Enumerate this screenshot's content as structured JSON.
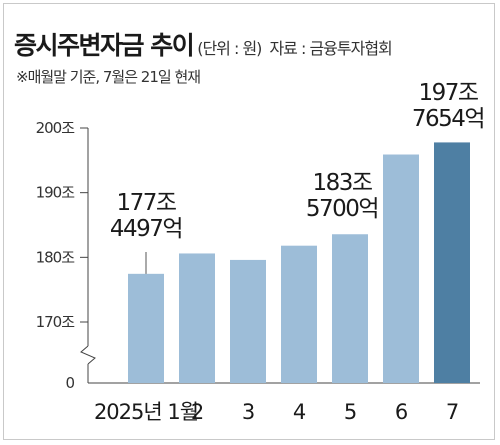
{
  "header": {
    "title": "증시주변자금 추이",
    "unit": "(단위 : 원)",
    "source": "자료 : 금융투자협회",
    "note": "※매월말 기준, 7월은 21일 현재"
  },
  "chart_data": {
    "type": "bar",
    "title": "증시주변자금 추이",
    "xlabel": "",
    "ylabel": "",
    "categories": [
      "2025년 1월",
      "2",
      "3",
      "4",
      "5",
      "6",
      "7"
    ],
    "values": [
      177.45,
      180.6,
      179.6,
      181.8,
      183.57,
      195.9,
      197.77
    ],
    "yticks": [
      "200조",
      "190조",
      "180조",
      "170조",
      "0"
    ],
    "ylim": [
      0,
      200
    ],
    "axis_break": true,
    "grid": false,
    "highlight_color": "#4e7fa3",
    "bar_color": "#9dbdd8",
    "annotations": [
      {
        "index": 0,
        "lines": [
          "177조",
          "4497억"
        ]
      },
      {
        "index": 4,
        "lines": [
          "183조",
          "5700억"
        ]
      },
      {
        "index": 6,
        "lines": [
          "197조",
          "7654억"
        ]
      }
    ]
  }
}
